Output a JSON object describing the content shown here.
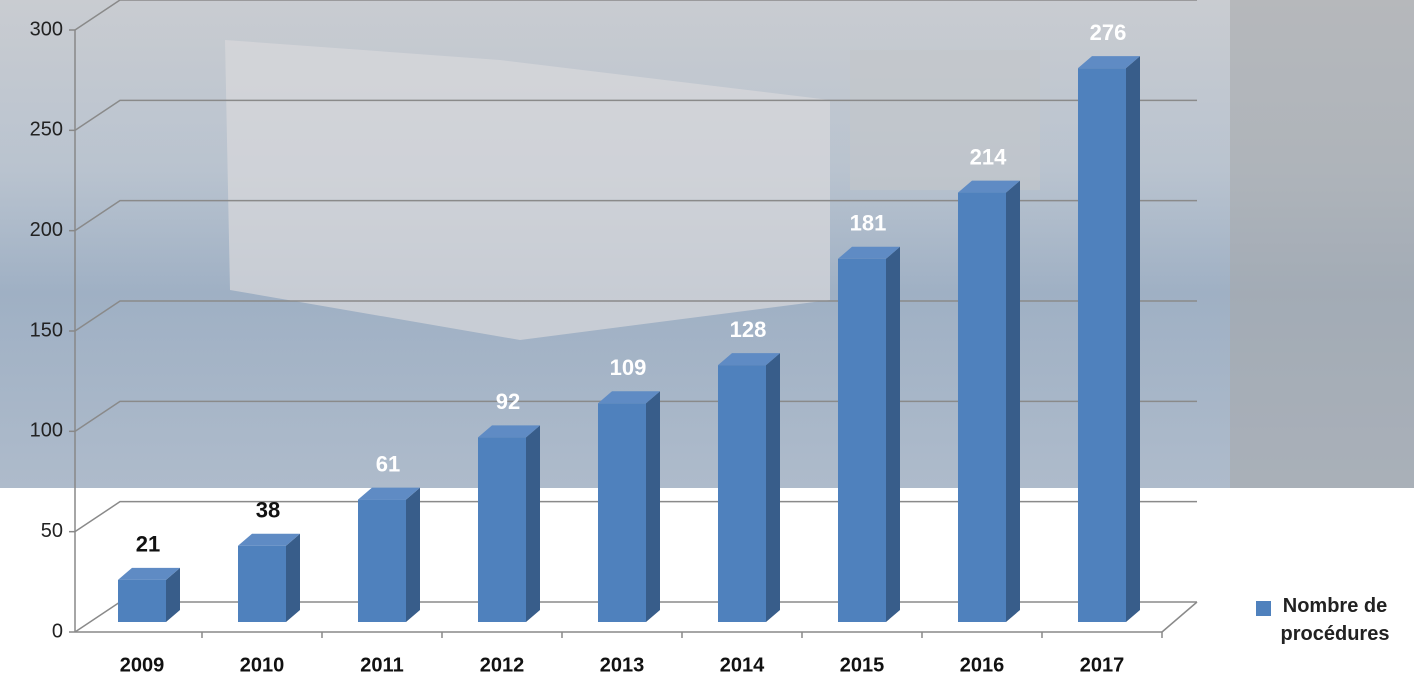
{
  "chart_data": {
    "type": "bar3d",
    "categories": [
      "2009",
      "2010",
      "2011",
      "2012",
      "2013",
      "2014",
      "2015",
      "2016",
      "2017"
    ],
    "series": [
      {
        "name": "Nombre de procédures",
        "color": "#4f81bd",
        "values": [
          21,
          38,
          61,
          92,
          109,
          128,
          181,
          214,
          276
        ]
      }
    ],
    "ylim": [
      0,
      300
    ],
    "yticks": [
      0,
      50,
      100,
      150,
      200,
      250,
      300
    ],
    "grid": true,
    "legend": "right"
  }
}
